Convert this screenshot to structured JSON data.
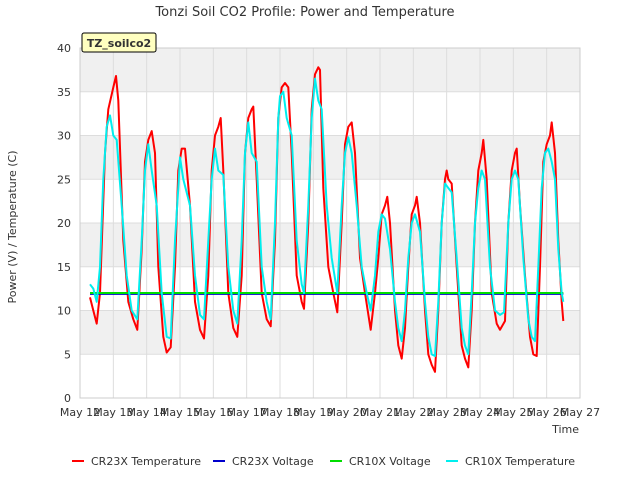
{
  "chart_data": {
    "type": "line",
    "title": "Tonzi Soil CO2 Profile: Power and Temperature",
    "xlabel": "Time",
    "ylabel": "Power (V) / Temperature (C)",
    "ylim": [
      0,
      40
    ],
    "xlim": [
      12,
      27
    ],
    "y_ticks": [
      0,
      5,
      10,
      15,
      20,
      25,
      30,
      35,
      40
    ],
    "x_ticks": [
      {
        "v": 12,
        "label": "May 12"
      },
      {
        "v": 13,
        "label": "May 13"
      },
      {
        "v": 14,
        "label": "May 14"
      },
      {
        "v": 15,
        "label": "May 15"
      },
      {
        "v": 16,
        "label": "May 16"
      },
      {
        "v": 17,
        "label": "May 17"
      },
      {
        "v": 18,
        "label": "May 18"
      },
      {
        "v": 19,
        "label": "May 19"
      },
      {
        "v": 20,
        "label": "May 20"
      },
      {
        "v": 21,
        "label": "May 21"
      },
      {
        "v": 22,
        "label": "May 22"
      },
      {
        "v": 23,
        "label": "May 23"
      },
      {
        "v": 24,
        "label": "May 24"
      },
      {
        "v": 25,
        "label": "May 25"
      },
      {
        "v": 26,
        "label": "May 26"
      },
      {
        "v": 27,
        "label": "May 27"
      }
    ],
    "grid": true,
    "legend_position": "bottom",
    "annotation": "TZ_soilco2",
    "series": [
      {
        "name": "CR23X Temperature",
        "color": "#ff0000",
        "points": [
          [
            12.3,
            11.5
          ],
          [
            12.4,
            10.0
          ],
          [
            12.5,
            8.5
          ],
          [
            12.6,
            12.0
          ],
          [
            12.75,
            28.0
          ],
          [
            12.85,
            33.0
          ],
          [
            13.0,
            35.5
          ],
          [
            13.08,
            36.8
          ],
          [
            13.15,
            34.0
          ],
          [
            13.3,
            18.0
          ],
          [
            13.45,
            11.0
          ],
          [
            13.6,
            9.0
          ],
          [
            13.72,
            7.8
          ],
          [
            13.85,
            17.0
          ],
          [
            13.95,
            27.0
          ],
          [
            14.05,
            29.5
          ],
          [
            14.15,
            30.5
          ],
          [
            14.25,
            28.0
          ],
          [
            14.35,
            15.0
          ],
          [
            14.5,
            7.0
          ],
          [
            14.6,
            5.2
          ],
          [
            14.72,
            5.8
          ],
          [
            14.85,
            15.0
          ],
          [
            14.95,
            26.0
          ],
          [
            15.05,
            28.5
          ],
          [
            15.15,
            28.5
          ],
          [
            15.3,
            22.0
          ],
          [
            15.45,
            11.0
          ],
          [
            15.6,
            7.8
          ],
          [
            15.72,
            6.8
          ],
          [
            15.85,
            14.0
          ],
          [
            15.95,
            26.0
          ],
          [
            16.05,
            30.0
          ],
          [
            16.15,
            31.0
          ],
          [
            16.22,
            32.0
          ],
          [
            16.3,
            26.0
          ],
          [
            16.45,
            12.0
          ],
          [
            16.6,
            8.0
          ],
          [
            16.72,
            7.0
          ],
          [
            16.85,
            14.0
          ],
          [
            16.95,
            28.0
          ],
          [
            17.05,
            32.0
          ],
          [
            17.15,
            33.0
          ],
          [
            17.2,
            33.3
          ],
          [
            17.3,
            25.0
          ],
          [
            17.45,
            12.0
          ],
          [
            17.6,
            9.0
          ],
          [
            17.72,
            8.2
          ],
          [
            17.85,
            18.0
          ],
          [
            17.95,
            32.0
          ],
          [
            18.05,
            35.5
          ],
          [
            18.15,
            36.0
          ],
          [
            18.25,
            35.5
          ],
          [
            18.35,
            28.0
          ],
          [
            18.5,
            14.0
          ],
          [
            18.65,
            11.0
          ],
          [
            18.72,
            10.2
          ],
          [
            18.85,
            20.0
          ],
          [
            18.95,
            33.0
          ],
          [
            19.05,
            37.0
          ],
          [
            19.15,
            37.8
          ],
          [
            19.2,
            37.5
          ],
          [
            19.3,
            24.0
          ],
          [
            19.45,
            15.0
          ],
          [
            19.6,
            12.0
          ],
          [
            19.72,
            9.8
          ],
          [
            19.85,
            20.0
          ],
          [
            19.95,
            29.0
          ],
          [
            20.05,
            31.0
          ],
          [
            20.15,
            31.5
          ],
          [
            20.25,
            28.0
          ],
          [
            20.4,
            16.0
          ],
          [
            20.55,
            12.0
          ],
          [
            20.72,
            7.8
          ],
          [
            20.85,
            12.0
          ],
          [
            20.95,
            16.0
          ],
          [
            21.05,
            21.0
          ],
          [
            21.15,
            22.0
          ],
          [
            21.22,
            23.0
          ],
          [
            21.3,
            20.0
          ],
          [
            21.45,
            10.0
          ],
          [
            21.55,
            6.0
          ],
          [
            21.65,
            4.5
          ],
          [
            21.75,
            8.0
          ],
          [
            21.85,
            15.0
          ],
          [
            21.95,
            21.0
          ],
          [
            22.05,
            22.0
          ],
          [
            22.1,
            23.0
          ],
          [
            22.2,
            20.0
          ],
          [
            22.35,
            10.0
          ],
          [
            22.45,
            5.0
          ],
          [
            22.55,
            3.8
          ],
          [
            22.65,
            3.0
          ],
          [
            22.75,
            10.0
          ],
          [
            22.85,
            20.0
          ],
          [
            22.95,
            25.0
          ],
          [
            23.0,
            26.0
          ],
          [
            23.05,
            25.0
          ],
          [
            23.15,
            24.5
          ],
          [
            23.3,
            15.0
          ],
          [
            23.45,
            6.0
          ],
          [
            23.55,
            4.5
          ],
          [
            23.65,
            3.5
          ],
          [
            23.75,
            10.0
          ],
          [
            23.85,
            20.0
          ],
          [
            23.95,
            26.0
          ],
          [
            24.05,
            28.0
          ],
          [
            24.1,
            29.5
          ],
          [
            24.2,
            25.0
          ],
          [
            24.35,
            12.0
          ],
          [
            24.5,
            8.5
          ],
          [
            24.6,
            7.8
          ],
          [
            24.75,
            8.8
          ],
          [
            24.85,
            20.0
          ],
          [
            24.95,
            26.0
          ],
          [
            25.05,
            28.0
          ],
          [
            25.1,
            28.5
          ],
          [
            25.2,
            22.0
          ],
          [
            25.35,
            14.0
          ],
          [
            25.5,
            7.0
          ],
          [
            25.6,
            5.0
          ],
          [
            25.7,
            4.8
          ],
          [
            25.8,
            15.0
          ],
          [
            25.9,
            27.0
          ],
          [
            26.0,
            29.0
          ],
          [
            26.1,
            30.0
          ],
          [
            26.15,
            31.5
          ],
          [
            26.25,
            28.0
          ],
          [
            26.35,
            18.0
          ],
          [
            26.45,
            11.0
          ],
          [
            26.5,
            8.8
          ]
        ]
      },
      {
        "name": "CR23X Voltage",
        "color": "#0000cc",
        "points": [
          [
            12.3,
            11.9
          ],
          [
            26.5,
            11.9
          ]
        ]
      },
      {
        "name": "CR10X Voltage",
        "color": "#00dd00",
        "points": [
          [
            12.3,
            12.0
          ],
          [
            26.5,
            12.0
          ]
        ]
      },
      {
        "name": "CR10X Temperature",
        "color": "#00eeee",
        "points": [
          [
            12.3,
            13.0
          ],
          [
            12.4,
            12.5
          ],
          [
            12.5,
            11.0
          ],
          [
            12.6,
            15.0
          ],
          [
            12.7,
            25.0
          ],
          [
            12.8,
            31.0
          ],
          [
            12.9,
            32.3
          ],
          [
            13.0,
            30.0
          ],
          [
            13.1,
            29.5
          ],
          [
            13.25,
            22.0
          ],
          [
            13.4,
            14.0
          ],
          [
            13.55,
            10.0
          ],
          [
            13.72,
            9.0
          ],
          [
            13.85,
            18.0
          ],
          [
            13.95,
            26.0
          ],
          [
            14.05,
            29.0
          ],
          [
            14.15,
            26.0
          ],
          [
            14.3,
            22.0
          ],
          [
            14.45,
            12.0
          ],
          [
            14.6,
            7.0
          ],
          [
            14.72,
            6.8
          ],
          [
            14.85,
            18.0
          ],
          [
            14.95,
            24.0
          ],
          [
            15.0,
            27.5
          ],
          [
            15.1,
            25.0
          ],
          [
            15.3,
            22.0
          ],
          [
            15.45,
            14.0
          ],
          [
            15.6,
            9.5
          ],
          [
            15.72,
            9.0
          ],
          [
            15.85,
            18.0
          ],
          [
            15.95,
            25.0
          ],
          [
            16.05,
            28.5
          ],
          [
            16.15,
            26.0
          ],
          [
            16.3,
            25.5
          ],
          [
            16.45,
            15.0
          ],
          [
            16.6,
            10.0
          ],
          [
            16.72,
            8.5
          ],
          [
            16.85,
            18.0
          ],
          [
            16.95,
            28.0
          ],
          [
            17.05,
            31.5
          ],
          [
            17.15,
            28.0
          ],
          [
            17.3,
            27.0
          ],
          [
            17.45,
            15.0
          ],
          [
            17.6,
            11.0
          ],
          [
            17.72,
            9.0
          ],
          [
            17.85,
            20.0
          ],
          [
            17.95,
            32.0
          ],
          [
            18.0,
            34.5
          ],
          [
            18.1,
            35.0
          ],
          [
            18.2,
            32.0
          ],
          [
            18.35,
            30.0
          ],
          [
            18.5,
            18.0
          ],
          [
            18.65,
            13.0
          ],
          [
            18.72,
            12.0
          ],
          [
            18.85,
            22.0
          ],
          [
            18.95,
            32.0
          ],
          [
            19.05,
            36.5
          ],
          [
            19.15,
            34.0
          ],
          [
            19.25,
            33.0
          ],
          [
            19.4,
            22.0
          ],
          [
            19.55,
            16.0
          ],
          [
            19.72,
            12.0
          ],
          [
            19.85,
            22.0
          ],
          [
            19.95,
            28.0
          ],
          [
            20.05,
            29.8
          ],
          [
            20.15,
            28.0
          ],
          [
            20.3,
            22.0
          ],
          [
            20.45,
            15.0
          ],
          [
            20.6,
            12.0
          ],
          [
            20.72,
            10.0
          ],
          [
            20.85,
            14.0
          ],
          [
            20.95,
            19.0
          ],
          [
            21.05,
            21.0
          ],
          [
            21.15,
            20.5
          ],
          [
            21.3,
            17.0
          ],
          [
            21.45,
            11.0
          ],
          [
            21.55,
            8.0
          ],
          [
            21.65,
            6.5
          ],
          [
            21.75,
            10.0
          ],
          [
            21.85,
            16.0
          ],
          [
            21.95,
            20.0
          ],
          [
            22.05,
            21.0
          ],
          [
            22.2,
            19.0
          ],
          [
            22.35,
            11.0
          ],
          [
            22.45,
            7.0
          ],
          [
            22.55,
            5.0
          ],
          [
            22.65,
            4.8
          ],
          [
            22.75,
            11.0
          ],
          [
            22.85,
            20.0
          ],
          [
            22.95,
            24.5
          ],
          [
            23.05,
            24.0
          ],
          [
            23.15,
            23.5
          ],
          [
            23.3,
            16.0
          ],
          [
            23.45,
            8.0
          ],
          [
            23.55,
            6.0
          ],
          [
            23.65,
            5.0
          ],
          [
            23.75,
            12.0
          ],
          [
            23.85,
            20.0
          ],
          [
            23.95,
            24.0
          ],
          [
            24.05,
            26.0
          ],
          [
            24.15,
            25.0
          ],
          [
            24.3,
            15.0
          ],
          [
            24.45,
            10.0
          ],
          [
            24.6,
            9.5
          ],
          [
            24.72,
            9.8
          ],
          [
            24.85,
            20.0
          ],
          [
            24.95,
            25.0
          ],
          [
            25.05,
            26.0
          ],
          [
            25.15,
            25.0
          ],
          [
            25.3,
            16.0
          ],
          [
            25.45,
            9.0
          ],
          [
            25.55,
            7.0
          ],
          [
            25.65,
            6.5
          ],
          [
            25.75,
            15.0
          ],
          [
            25.85,
            24.0
          ],
          [
            25.95,
            28.0
          ],
          [
            26.05,
            28.5
          ],
          [
            26.15,
            27.0
          ],
          [
            26.25,
            25.0
          ],
          [
            26.35,
            17.0
          ],
          [
            26.45,
            12.0
          ],
          [
            26.5,
            11.0
          ]
        ]
      }
    ]
  }
}
